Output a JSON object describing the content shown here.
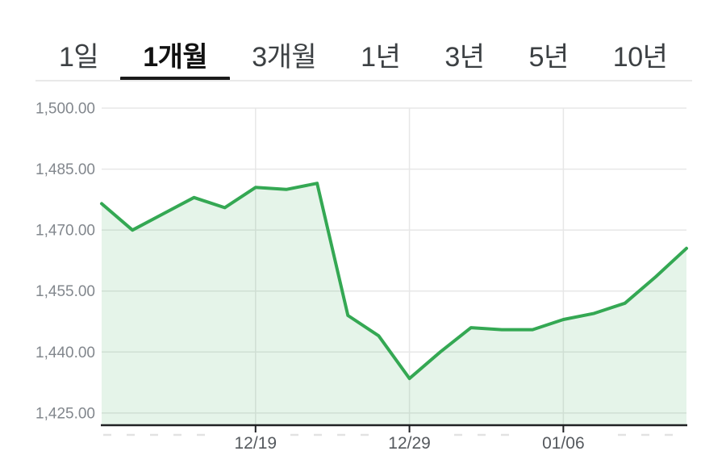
{
  "tabs": {
    "items": [
      {
        "key": "1d",
        "label": "1일",
        "active": false
      },
      {
        "key": "1m",
        "label": "1개월",
        "active": true
      },
      {
        "key": "3m",
        "label": "3개월",
        "active": false
      },
      {
        "key": "1y",
        "label": "1년",
        "active": false
      },
      {
        "key": "3y",
        "label": "3년",
        "active": false
      },
      {
        "key": "5y",
        "label": "5년",
        "active": false
      },
      {
        "key": "10y",
        "label": "10년",
        "active": false
      }
    ],
    "active_underline_color": "#1a1a1a"
  },
  "chart_data": {
    "type": "area",
    "title": "",
    "xlabel": "",
    "ylabel": "",
    "series": [
      {
        "name": "value",
        "values": [
          1476.5,
          1470,
          1474,
          1478,
          1475.5,
          1480.5,
          1480,
          1481.5,
          1449,
          1444,
          1433.5,
          1440,
          1446,
          1445.5,
          1445.5,
          1448,
          1449.5,
          1452,
          1458.5,
          1465.5
        ]
      }
    ],
    "x_ticks": [
      {
        "index": 5,
        "label": "12/19"
      },
      {
        "index": 10,
        "label": "12/29"
      },
      {
        "index": 15,
        "label": "01/06"
      }
    ],
    "y_ticks": [
      {
        "value": 1500,
        "label": "1,500.00"
      },
      {
        "value": 1485,
        "label": "1,485.00"
      },
      {
        "value": 1470,
        "label": "1,470.00"
      },
      {
        "value": 1455,
        "label": "1,455.00"
      },
      {
        "value": 1440,
        "label": "1,440.00"
      },
      {
        "value": 1425,
        "label": "1,425.00"
      }
    ],
    "ylim": [
      1422,
      1500
    ],
    "grid": true,
    "legend": "none",
    "line_color": "#34a853",
    "fill_color": "rgba(52,168,83,0.13)",
    "gridline_color": "#e7e7e7",
    "axis_color": "#202124",
    "y_label_color": "#82878d",
    "x_label_color": "#55595e",
    "minor_tick_color": "#e2e2e2"
  }
}
